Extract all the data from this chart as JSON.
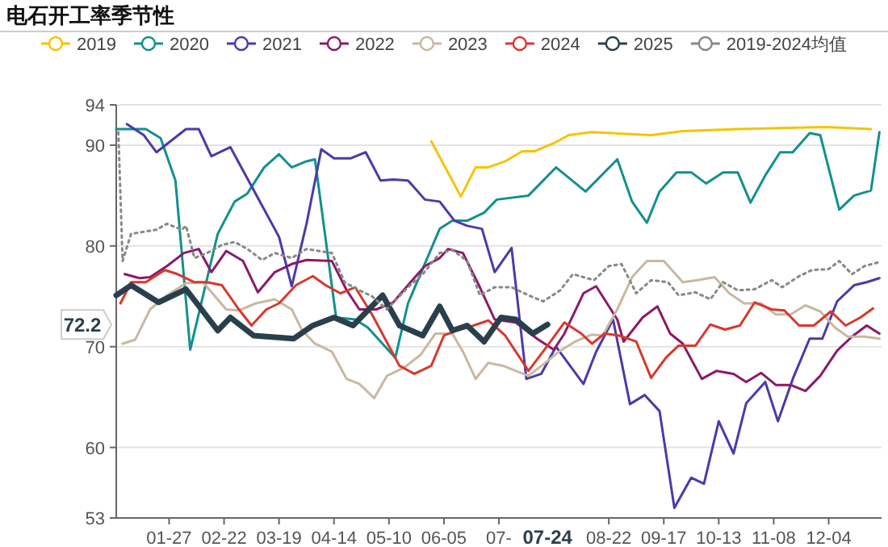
{
  "chart_data": {
    "type": "line",
    "title": "电石开工率季节性",
    "xlim": [
      "--01-02",
      "--12-29"
    ],
    "xticks": [
      {
        "value": "--01-27",
        "label": "01-27"
      },
      {
        "value": "--02-22",
        "label": "02-22"
      },
      {
        "value": "--03-19",
        "label": "03-19"
      },
      {
        "value": "--04-14",
        "label": "04-14"
      },
      {
        "value": "--05-10",
        "label": "05-10"
      },
      {
        "value": "--06-05",
        "label": "06-05"
      },
      {
        "value": "--07-01",
        "label": "07-"
      },
      {
        "value": "--08-22",
        "label": "08-22"
      },
      {
        "value": "--09-17",
        "label": "09-17"
      },
      {
        "value": "--10-13",
        "label": "10-13"
      },
      {
        "value": "--11-08",
        "label": "11-08"
      },
      {
        "value": "--12-04",
        "label": "12-04"
      }
    ],
    "ylim": [
      53,
      94
    ],
    "yticks": [
      53,
      60,
      70,
      80,
      90,
      94
    ],
    "grid": "y",
    "legend": "top",
    "annotations": [
      "72.2",
      "07-24"
    ],
    "series": [
      {
        "name": "2019",
        "color": "#f5c400",
        "x": [
          "--05-30",
          "--06-13",
          "--06-20",
          "--06-26",
          "--07-04",
          "--07-12",
          "--07-18",
          "--07-27",
          "--08-03",
          "--08-14",
          "--09-11",
          "--09-26",
          "--10-22",
          "--12-03",
          "--12-24"
        ],
        "values": [
          90.4,
          84.9,
          87.8,
          87.8,
          88.4,
          89.4,
          89.4,
          90.2,
          91,
          91.3,
          91,
          91.4,
          91.6,
          91.8,
          91.6
        ]
      },
      {
        "name": "2020",
        "color": "#12908e",
        "x": [
          "--01-02",
          "--01-16",
          "--01-23",
          "--01-30",
          "--02-06",
          "--02-13",
          "--02-19",
          "--02-27",
          "--03-04",
          "--03-12",
          "--03-19",
          "--03-25",
          "--04-01",
          "--04-05",
          "--04-15",
          "--04-24",
          "--04-30",
          "--05-13",
          "--05-19",
          "--06-03",
          "--06-09",
          "--06-16",
          "--06-24",
          "--06-30",
          "--07-15",
          "--07-22",
          "--07-28",
          "--08-11",
          "--08-26",
          "--09-02",
          "--09-09",
          "--09-15",
          "--09-23",
          "--09-30",
          "--10-07",
          "--10-15",
          "--10-22",
          "--10-28",
          "--11-04",
          "--11-11",
          "--11-17",
          "--11-25",
          "--11-30",
          "--12-09",
          "--12-16",
          "--12-24",
          "--12-28"
        ],
        "values": [
          91.6,
          91.6,
          90.7,
          86.5,
          69.7,
          75.9,
          81.2,
          84.4,
          85.2,
          87.8,
          89.1,
          87.8,
          88.4,
          88.6,
          72.9,
          72.7,
          71.9,
          68.9,
          74.3,
          81.7,
          82.5,
          82.5,
          83.3,
          84.6,
          85,
          86.5,
          87.8,
          85.4,
          88.6,
          84.4,
          82.3,
          85.4,
          87.3,
          87.3,
          86.2,
          87.3,
          87.3,
          84.3,
          87,
          89.3,
          89.3,
          91.2,
          91,
          83.6,
          85,
          85.5,
          91.3
        ]
      },
      {
        "name": "2021",
        "color": "#4b3aa8",
        "x": [
          "--01-07",
          "--01-15",
          "--01-21",
          "--02-04",
          "--02-10",
          "--02-16",
          "--02-25",
          "--03-19",
          "--03-25",
          "--04-01",
          "--04-08",
          "--04-14",
          "--04-22",
          "--04-29",
          "--05-06",
          "--05-12",
          "--05-19",
          "--05-27",
          "--06-03",
          "--06-10",
          "--06-16",
          "--06-23",
          "--06-29",
          "--07-07",
          "--07-14",
          "--07-21",
          "--07-28",
          "--08-10",
          "--08-16",
          "--08-24",
          "--09-01",
          "--09-08",
          "--09-15",
          "--09-22",
          "--09-30",
          "--10-06",
          "--10-13",
          "--10-20",
          "--10-26",
          "--11-04",
          "--11-10",
          "--11-17",
          "--11-25",
          "--12-01",
          "--12-08",
          "--12-16",
          "--12-22",
          "--12-28"
        ],
        "values": [
          92.1,
          91,
          89.3,
          91.6,
          91.6,
          88.9,
          89.8,
          80.9,
          76,
          82.2,
          89.6,
          88.7,
          88.7,
          89.3,
          86.5,
          86.6,
          86.5,
          84.6,
          84.4,
          82.5,
          82,
          81.7,
          77.4,
          79.8,
          66.8,
          67.3,
          70,
          66.3,
          69.5,
          72.7,
          64.3,
          65.2,
          63.6,
          54,
          57,
          56.4,
          62.6,
          59.4,
          64.4,
          66.5,
          62.6,
          66.8,
          70.8,
          70.8,
          74.5,
          76.1,
          76.4,
          76.8
        ]
      },
      {
        "name": "2022",
        "color": "#8b1a6a",
        "x": [
          "--01-06",
          "--01-13",
          "--01-18",
          "--01-26",
          "--02-03",
          "--02-10",
          "--02-16",
          "--02-23",
          "--03-02",
          "--03-09",
          "--03-17",
          "--03-25",
          "--04-01",
          "--04-13",
          "--04-20",
          "--04-26",
          "--05-04",
          "--05-12",
          "--05-19",
          "--05-27",
          "--06-03",
          "--06-07",
          "--06-14",
          "--06-22",
          "--06-29",
          "--07-09",
          "--07-19",
          "--07-27",
          "--08-01",
          "--08-10",
          "--08-16",
          "--08-26",
          "--08-29",
          "--09-07",
          "--09-14",
          "--09-20",
          "--09-26",
          "--10-05",
          "--10-12",
          "--10-20",
          "--10-26",
          "--11-02",
          "--11-09",
          "--11-16",
          "--11-23",
          "--11-30",
          "--12-08",
          "--12-15",
          "--12-22",
          "--12-28"
        ],
        "values": [
          77.2,
          76.8,
          76.9,
          78,
          79.3,
          79.7,
          77.4,
          79.5,
          78.5,
          75.4,
          77.4,
          78.2,
          78.6,
          78.5,
          75.6,
          73.7,
          73.7,
          74.4,
          76.1,
          78,
          78.8,
          79.7,
          79.3,
          75.9,
          72.7,
          72.4,
          70.8,
          69.7,
          71.3,
          75.3,
          76,
          72.7,
          70.5,
          72.9,
          74,
          71.3,
          70.3,
          66.8,
          67.6,
          67.3,
          66.5,
          67.4,
          66.2,
          66.2,
          65.6,
          67.1,
          69.6,
          71,
          72.1,
          71.3
        ]
      },
      {
        "name": "2023",
        "color": "#c9b8a0",
        "x": [
          "--01-05",
          "--01-11",
          "--01-18",
          "--01-26",
          "--02-04",
          "--02-12",
          "--02-23",
          "--02-29",
          "--03-08",
          "--03-17",
          "--03-25",
          "--03-30",
          "--04-05",
          "--04-13",
          "--04-20",
          "--04-26",
          "--05-03",
          "--05-09",
          "--05-17",
          "--05-25",
          "--06-01",
          "--06-09",
          "--06-14",
          "--06-20",
          "--06-26",
          "--07-03",
          "--07-09",
          "--07-15",
          "--07-23",
          "--07-30",
          "--08-06",
          "--08-14",
          "--08-19",
          "--08-26",
          "--09-02",
          "--09-09",
          "--09-17",
          "--09-26",
          "--10-03",
          "--10-11",
          "--10-18",
          "--10-25",
          "--11-02",
          "--11-09",
          "--11-16",
          "--11-23",
          "--11-30",
          "--12-07",
          "--12-13",
          "--12-21",
          "--12-28"
        ],
        "values": [
          70.3,
          70.7,
          73.7,
          75.1,
          76.3,
          76.4,
          73.7,
          73.6,
          74.3,
          74.7,
          73.7,
          71.6,
          70.3,
          69.5,
          66.8,
          66.3,
          64.9,
          67.1,
          67.9,
          69.2,
          71.3,
          71.3,
          69.5,
          66.8,
          68.4,
          68.1,
          67.6,
          67.1,
          68.4,
          69.6,
          70.5,
          71.2,
          71.1,
          73.7,
          76.9,
          78.5,
          78.5,
          76.4,
          76.6,
          76.9,
          75.3,
          74.3,
          74.3,
          73.2,
          73.2,
          74.1,
          73.5,
          71.9,
          71,
          71,
          70.8
        ]
      },
      {
        "name": "2024",
        "color": "#d8382e",
        "x": [
          "--01-04",
          "--01-09",
          "--01-16",
          "--01-25",
          "--01-31",
          "--02-08",
          "--02-14",
          "--02-21",
          "--02-29",
          "--03-06",
          "--03-13",
          "--03-19",
          "--03-27",
          "--04-04",
          "--04-10",
          "--04-17",
          "--04-24",
          "--05-02",
          "--05-15",
          "--05-22",
          "--05-30",
          "--06-05",
          "--06-11",
          "--06-19",
          "--06-26",
          "--07-04",
          "--07-15",
          "--07-24",
          "--08-01",
          "--08-09",
          "--08-14",
          "--08-20",
          "--08-27",
          "--09-04",
          "--09-11",
          "--09-18",
          "--09-24",
          "--10-02",
          "--10-09",
          "--10-16",
          "--10-23",
          "--10-30",
          "--11-07",
          "--11-13",
          "--11-20",
          "--11-27",
          "--12-05",
          "--12-12",
          "--12-19",
          "--12-25"
        ],
        "values": [
          74.3,
          76.4,
          76.4,
          77.6,
          77.2,
          76.4,
          76.4,
          76.1,
          73.7,
          72.1,
          73.7,
          74.3,
          76.1,
          77,
          76.1,
          75.3,
          75.9,
          73.2,
          68.1,
          67.3,
          68.1,
          71.1,
          71.6,
          72.1,
          72.6,
          71.1,
          67.6,
          70.1,
          72.4,
          71.3,
          70.3,
          71.3,
          71.1,
          70.5,
          66.9,
          68.9,
          70.1,
          70.1,
          72.2,
          71.7,
          72.1,
          74.4,
          73.7,
          73.6,
          72.1,
          72.1,
          73.5,
          72.1,
          72.9,
          73.8
        ]
      },
      {
        "name": "2025",
        "color": "#2a3f4c",
        "x": [
          "--01-02",
          "--01-09",
          "--01-22",
          "--02-04",
          "--02-19",
          "--02-25",
          "--03-07",
          "--03-26",
          "--04-04",
          "--04-14",
          "--04-23",
          "--05-07",
          "--05-15",
          "--05-26",
          "--06-03",
          "--06-09",
          "--06-16",
          "--06-24",
          "--07-02",
          "--07-09",
          "--07-17",
          "--07-24"
        ],
        "values": [
          75.1,
          76.1,
          74.4,
          75.7,
          71.6,
          72.9,
          71.1,
          70.8,
          72.1,
          72.9,
          72.1,
          75.1,
          72.1,
          71.1,
          74,
          71.6,
          72.1,
          70.5,
          72.9,
          72.7,
          71.3,
          72.2
        ]
      },
      {
        "name": "2019-2024均值",
        "color": "#888888",
        "line_style": "dotted",
        "x": [
          "--01-03",
          "--01-05",
          "--01-09",
          "--01-15",
          "--01-21",
          "--01-26",
          "--02-02",
          "--02-04",
          "--02-08",
          "--02-14",
          "--02-21",
          "--02-27",
          "--03-04",
          "--03-11",
          "--03-17",
          "--03-25",
          "--04-01",
          "--04-13",
          "--04-19",
          "--04-26",
          "--05-02",
          "--05-09",
          "--05-19",
          "--05-26",
          "--06-03",
          "--06-09",
          "--06-16",
          "--06-22",
          "--06-29",
          "--07-07",
          "--07-15",
          "--07-22",
          "--07-30",
          "--08-05",
          "--08-15",
          "--08-22",
          "--08-28",
          "--09-04",
          "--09-11",
          "--09-19",
          "--09-24",
          "--10-02",
          "--10-09",
          "--10-15",
          "--10-22",
          "--10-30",
          "--11-07",
          "--11-12",
          "--11-20",
          "--11-26",
          "--12-04",
          "--12-09",
          "--12-15",
          "--12-21",
          "--12-28"
        ],
        "values": [
          91.3,
          78.5,
          81.2,
          81.4,
          81.6,
          82.2,
          81.6,
          82,
          78.8,
          79.3,
          80.1,
          80.4,
          79.7,
          78.6,
          79.3,
          78.8,
          79.7,
          79.3,
          76.4,
          75.6,
          75,
          73.7,
          75.9,
          77.2,
          79.3,
          79.6,
          78.5,
          75.1,
          75.9,
          75.9,
          75.1,
          74.5,
          75.6,
          77.2,
          76.6,
          78,
          78.2,
          75.3,
          76.6,
          76.4,
          75.1,
          75.4,
          74.7,
          76.4,
          75.6,
          75.7,
          76.6,
          75.9,
          77,
          77.6,
          77.7,
          78.5,
          77.2,
          78,
          78.4
        ]
      }
    ]
  }
}
